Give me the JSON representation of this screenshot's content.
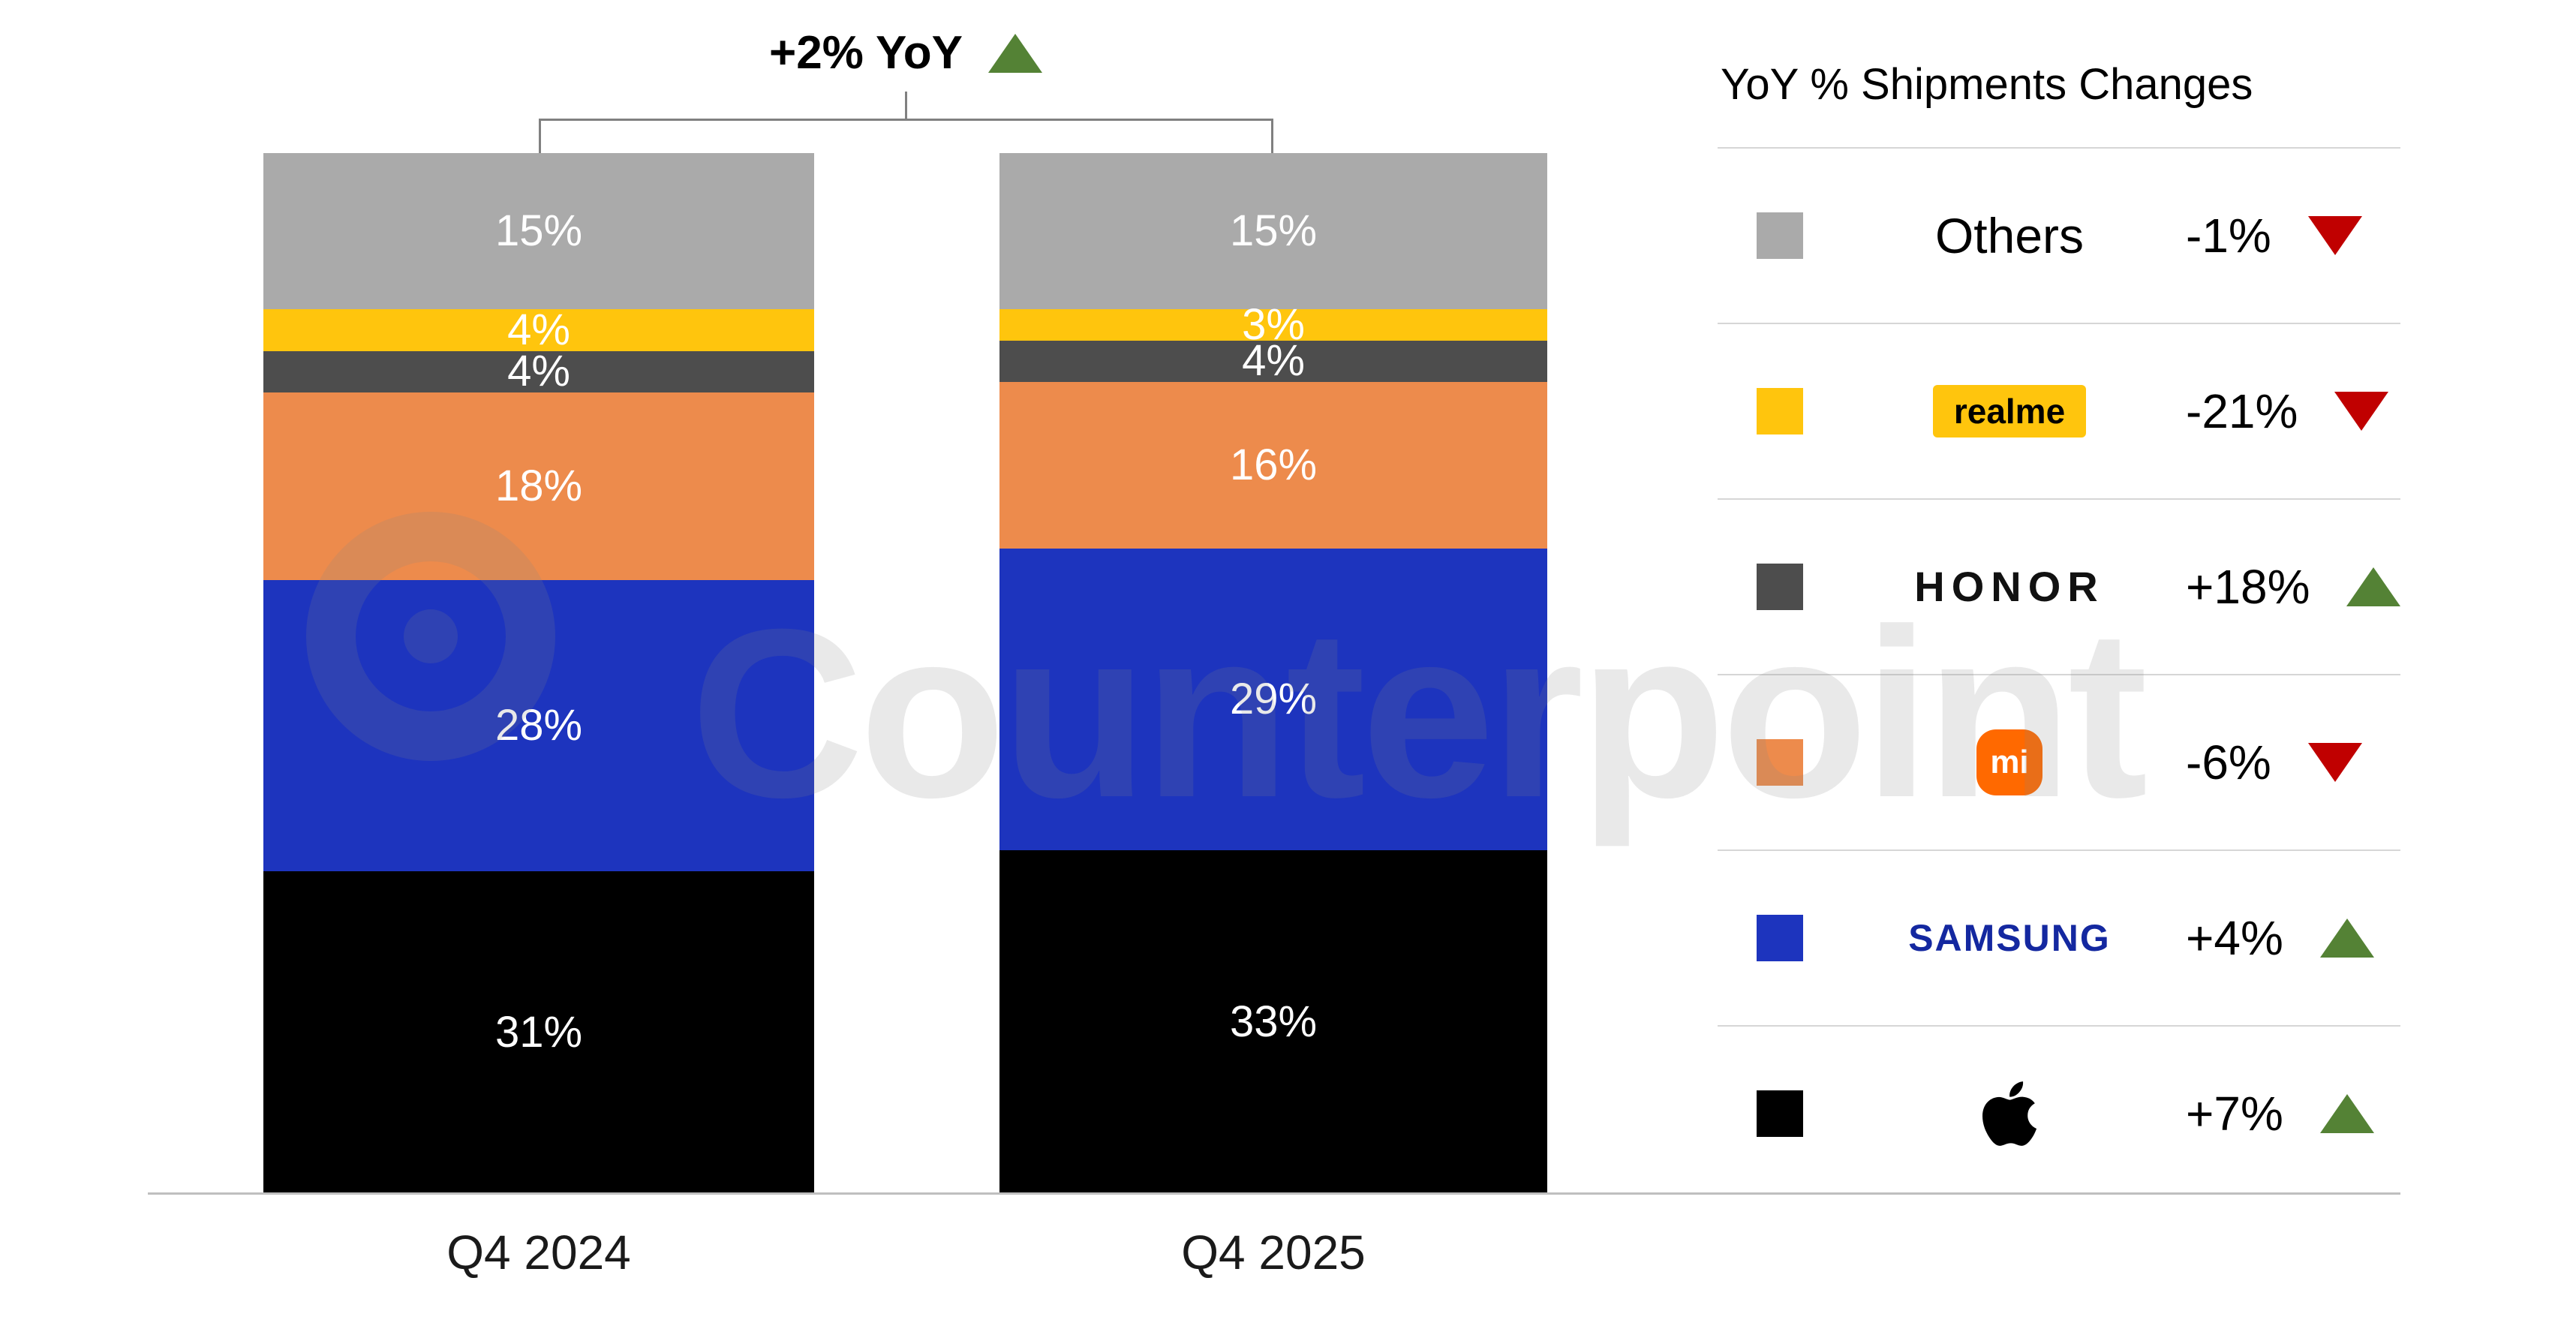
{
  "watermark": {
    "text": "Counterpoint"
  },
  "chart_data": {
    "type": "bar",
    "subtype": "stacked-100-percent",
    "title": "",
    "categories": [
      "Q4 2024",
      "Q4 2025"
    ],
    "stack_order": "top-to-bottom",
    "series": [
      {
        "name": "Others",
        "color": "#AAAAAA",
        "values": [
          15,
          15
        ]
      },
      {
        "name": "realme",
        "color": "#FFC50D",
        "values": [
          4,
          3
        ]
      },
      {
        "name": "HONOR",
        "color": "#4D4D4D",
        "values": [
          4,
          4
        ]
      },
      {
        "name": "Xiaomi",
        "color": "#ED8B4C",
        "values": [
          18,
          16
        ]
      },
      {
        "name": "Samsung",
        "color": "#1D34BE",
        "values": [
          28,
          29
        ]
      },
      {
        "name": "Apple",
        "color": "#000000",
        "values": [
          31,
          33
        ]
      }
    ],
    "value_suffix": "%",
    "ylim": [
      0,
      100
    ],
    "annotation": {
      "text": "+2% YoY",
      "direction": "up"
    }
  },
  "legend": {
    "title": "YoY % Shipments Changes",
    "items": [
      {
        "brand": "Others",
        "display": "Others",
        "style": "text",
        "swatch": "#AAAAAA",
        "change": "-1%",
        "direction": "down"
      },
      {
        "brand": "realme",
        "display": "realme",
        "style": "realme-badge",
        "swatch": "#FFC50D",
        "change": "-21%",
        "direction": "down"
      },
      {
        "brand": "HONOR",
        "display": "HONOR",
        "style": "honor",
        "swatch": "#4D4D4D",
        "change": "+18%",
        "direction": "up"
      },
      {
        "brand": "Xiaomi",
        "display": "mi",
        "style": "mi-logo",
        "swatch": "#ED8B4C",
        "change": "-6%",
        "direction": "down"
      },
      {
        "brand": "Samsung",
        "display": "SAMSUNG",
        "style": "samsung",
        "swatch": "#1D34BE",
        "change": "+4%",
        "direction": "up"
      },
      {
        "brand": "Apple",
        "display": "",
        "style": "apple-logo",
        "swatch": "#000000",
        "change": "+7%",
        "direction": "up"
      }
    ]
  },
  "colors": {
    "up_triangle": "#548235",
    "down_triangle": "#C00000"
  }
}
